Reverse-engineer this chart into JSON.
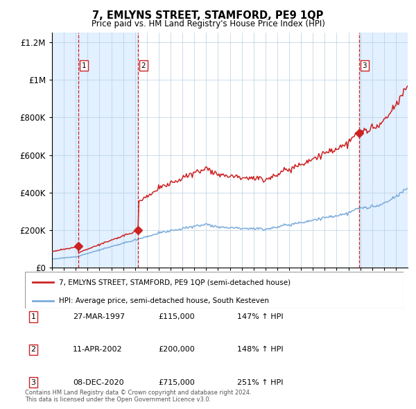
{
  "title": "7, EMLYNS STREET, STAMFORD, PE9 1QP",
  "subtitle": "Price paid vs. HM Land Registry's House Price Index (HPI)",
  "legend_line1": "7, EMLYNS STREET, STAMFORD, PE9 1QP (semi-detached house)",
  "legend_line2": "HPI: Average price, semi-detached house, South Kesteven",
  "sale_dates_num": [
    1997.23,
    2002.27,
    2020.92
  ],
  "sale_prices": [
    115000,
    200000,
    715000
  ],
  "sale_labels": [
    "1",
    "2",
    "3"
  ],
  "hpi_color": "#7aabdc",
  "price_color": "#cc2222",
  "dashed_color": "#cc2222",
  "background_fill": "#ddeeff",
  "grid_color": "#b8cfe0",
  "xlim": [
    1995,
    2025
  ],
  "ylim": [
    0,
    1250000
  ],
  "yticks": [
    0,
    200000,
    400000,
    600000,
    800000,
    1000000,
    1200000
  ],
  "ytick_labels": [
    "£0",
    "£200K",
    "£400K",
    "£600K",
    "£800K",
    "£1M",
    "£1.2M"
  ],
  "footer1": "Contains HM Land Registry data © Crown copyright and database right 2024.",
  "footer2": "This data is licensed under the Open Government Licence v3.0.",
  "table": [
    [
      "1",
      "27-MAR-1997",
      "£115,000",
      "147% ↑ HPI"
    ],
    [
      "2",
      "11-APR-2002",
      "£200,000",
      "148% ↑ HPI"
    ],
    [
      "3",
      "08-DEC-2020",
      "£715,000",
      "251% ↑ HPI"
    ]
  ]
}
